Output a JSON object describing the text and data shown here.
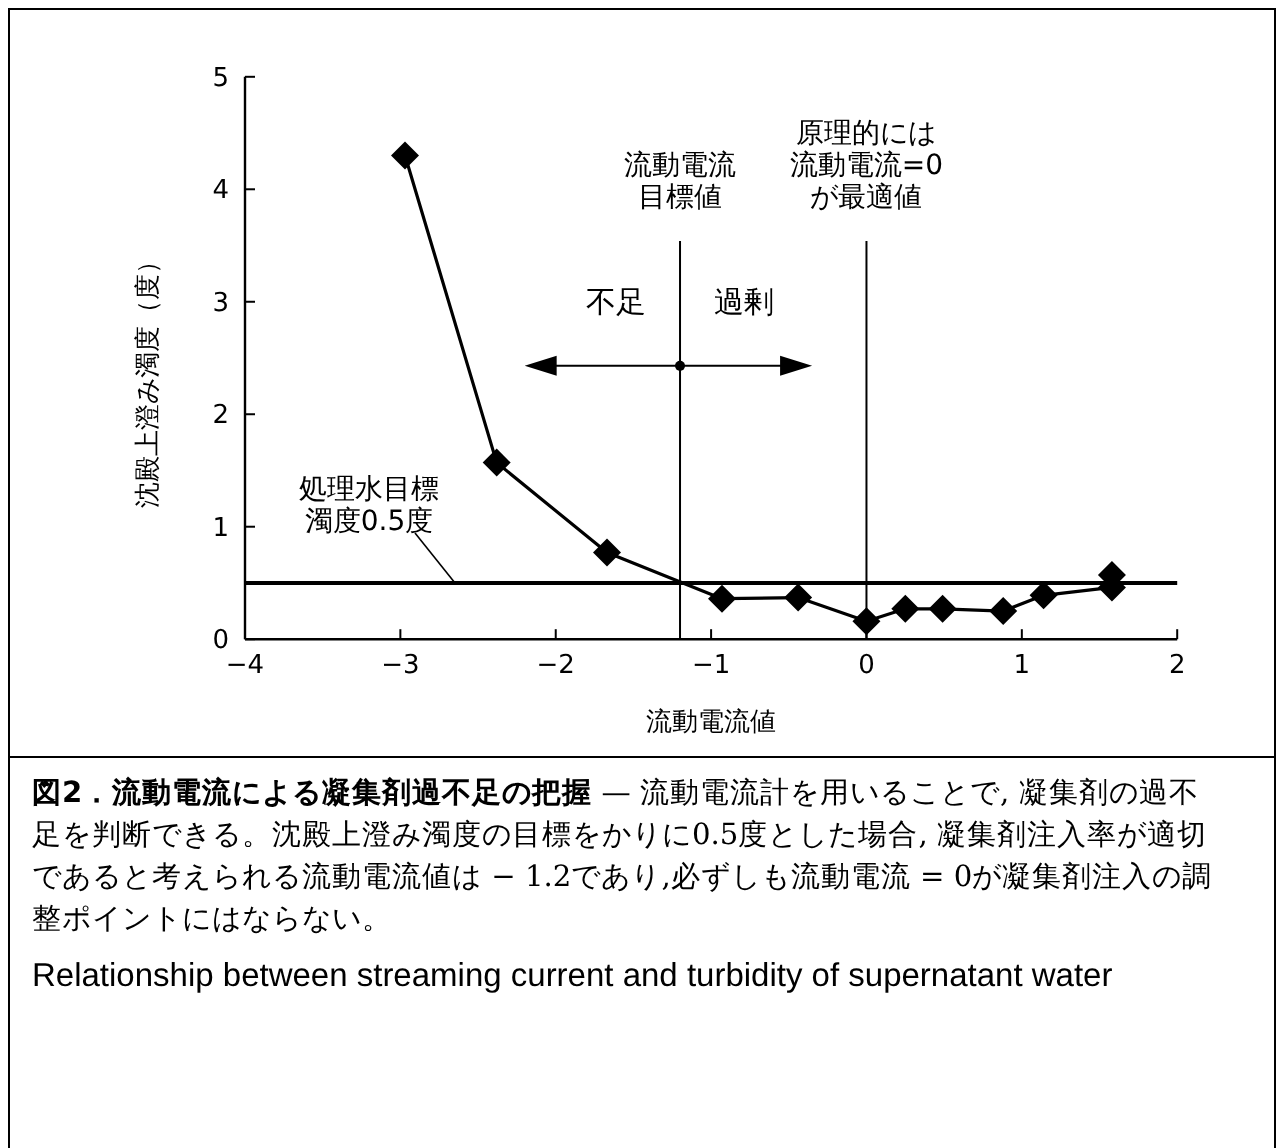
{
  "chart_data": {
    "type": "line",
    "title": "図2．流動電流による凝集剤過不足の把握",
    "subtitle": "— 流動電流計を用いることで, 凝集剤の過不足を判断できる。沈殿上澄み濁度の目標をかりに0.5度とした場合, 凝集剤注入率が適切であると考えられる流動電流値は − 1.2であり,必ずしも流動電流 = 0が凝集剤注入の調整ポイントにはならない。",
    "xlabel": "流動電流値",
    "ylabel": "沈殿上澄み濁度（度）",
    "x": [
      -2.97,
      -2.38,
      -1.67,
      -0.93,
      -0.44,
      0.0,
      0.25,
      0.49,
      0.88,
      1.14,
      1.58,
      1.58
    ],
    "series": [
      {
        "color": "#000000",
        "values": [
          4.3,
          1.57,
          0.77,
          0.36,
          0.37,
          0.16,
          0.27,
          0.27,
          0.25,
          0.39,
          0.46,
          0.57
        ]
      }
    ],
    "marker": "diamond",
    "line_style": "solid",
    "grid": false,
    "xlim": [
      -4,
      2
    ],
    "xticks": [
      {
        "value": -4,
        "label": "−4"
      },
      {
        "value": -3,
        "label": "−3"
      },
      {
        "value": -2,
        "label": "−2"
      },
      {
        "value": -1,
        "label": "−1"
      },
      0,
      1,
      2
    ],
    "ylim": [
      0,
      5
    ],
    "yticks": [
      0,
      1,
      2,
      3,
      4,
      5
    ],
    "ref_lines": [
      {
        "axis": "y",
        "value": 0.5,
        "label": "処理水目標濁度0.5度"
      },
      {
        "axis": "x",
        "value": -1.2,
        "label": "流動電流目標値"
      },
      {
        "axis": "x",
        "value": 0,
        "label": "原理的には流動電流=0が最適値"
      }
    ],
    "annotations": [
      "不足",
      "過剰",
      "Relationship between streaming current and turbidity of supernatant water"
    ]
  }
}
